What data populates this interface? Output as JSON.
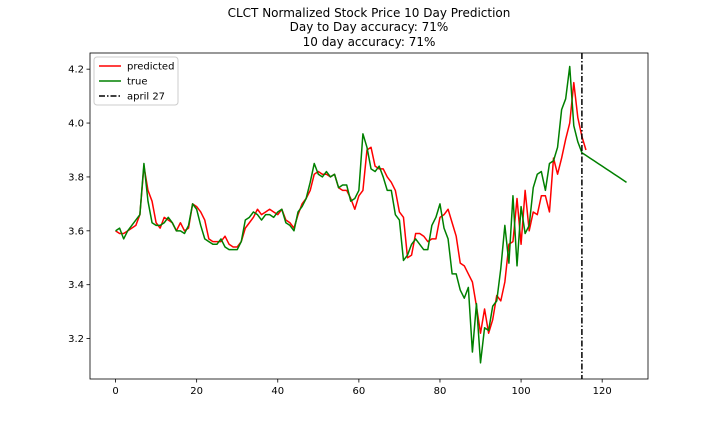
{
  "chart_data": {
    "type": "line",
    "title_lines": [
      "CLCT Normalized Stock Price 10 Day Prediction",
      "Day to Day accuracy: 71%",
      "10 day accuracy: 71%"
    ],
    "xlabel": "",
    "ylabel": "",
    "xlim": [
      -6.3,
      131.3
    ],
    "ylim": [
      3.05,
      4.26
    ],
    "xticks": [
      0,
      20,
      40,
      60,
      80,
      100,
      120
    ],
    "yticks": [
      3.2,
      3.4,
      3.6,
      3.8,
      4.0,
      4.2
    ],
    "ytick_labels": [
      "3.2",
      "3.4",
      "3.6",
      "3.8",
      "4.0",
      "4.2"
    ],
    "grid": false,
    "legend_position": "top-left",
    "series": [
      {
        "name": "predicted",
        "color": "#ff0000",
        "style": "solid",
        "x_start": 0,
        "values": [
          3.6,
          3.59,
          3.59,
          3.6,
          3.61,
          3.62,
          3.66,
          3.84,
          3.75,
          3.71,
          3.63,
          3.61,
          3.65,
          3.64,
          3.63,
          3.6,
          3.63,
          3.6,
          3.61,
          3.7,
          3.69,
          3.67,
          3.64,
          3.57,
          3.56,
          3.56,
          3.56,
          3.58,
          3.55,
          3.54,
          3.54,
          3.56,
          3.61,
          3.63,
          3.65,
          3.68,
          3.66,
          3.67,
          3.68,
          3.67,
          3.66,
          3.68,
          3.64,
          3.63,
          3.61,
          3.66,
          3.7,
          3.72,
          3.75,
          3.81,
          3.82,
          3.81,
          3.81,
          3.8,
          3.81,
          3.76,
          3.75,
          3.75,
          3.72,
          3.68,
          3.73,
          3.75,
          3.9,
          3.91,
          3.84,
          3.83,
          3.83,
          3.8,
          3.78,
          3.75,
          3.67,
          3.65,
          3.5,
          3.51,
          3.59,
          3.59,
          3.58,
          3.56,
          3.57,
          3.57,
          3.65,
          3.66,
          3.68,
          3.63,
          3.58,
          3.48,
          3.47,
          3.44,
          3.41,
          3.32,
          3.22,
          3.31,
          3.22,
          3.27,
          3.36,
          3.34,
          3.41,
          3.55,
          3.56,
          3.72,
          3.55,
          3.75,
          3.6,
          3.67,
          3.66,
          3.73,
          3.73,
          3.67,
          3.87,
          3.81,
          3.87,
          3.94,
          4.0,
          4.15,
          4.02,
          3.95,
          3.9
        ]
      },
      {
        "name": "true",
        "color": "#008000",
        "style": "solid",
        "x_start": 0,
        "values": [
          3.6,
          3.61,
          3.57,
          3.6,
          3.62,
          3.64,
          3.66,
          3.85,
          3.71,
          3.63,
          3.62,
          3.62,
          3.63,
          3.65,
          3.63,
          3.6,
          3.6,
          3.59,
          3.62,
          3.7,
          3.68,
          3.62,
          3.57,
          3.56,
          3.55,
          3.55,
          3.57,
          3.54,
          3.53,
          3.53,
          3.53,
          3.56,
          3.64,
          3.65,
          3.67,
          3.66,
          3.64,
          3.66,
          3.66,
          3.65,
          3.67,
          3.68,
          3.63,
          3.62,
          3.6,
          3.67,
          3.69,
          3.72,
          3.78,
          3.85,
          3.81,
          3.8,
          3.82,
          3.8,
          3.81,
          3.76,
          3.77,
          3.77,
          3.71,
          3.72,
          3.75,
          3.96,
          3.91,
          3.83,
          3.82,
          3.84,
          3.8,
          3.75,
          3.75,
          3.66,
          3.64,
          3.49,
          3.51,
          3.55,
          3.57,
          3.55,
          3.53,
          3.53,
          3.62,
          3.65,
          3.7,
          3.61,
          3.57,
          3.44,
          3.44,
          3.38,
          3.35,
          3.39,
          3.15,
          3.33,
          3.11,
          3.24,
          3.23,
          3.32,
          3.34,
          3.46,
          3.62,
          3.48,
          3.73,
          3.47,
          3.69,
          3.59,
          3.62,
          3.76,
          3.81,
          3.82,
          3.75,
          3.85,
          3.86,
          3.91,
          4.05,
          4.09,
          4.21,
          3.99,
          3.93,
          3.89,
          3.88,
          3.87,
          3.86,
          3.85,
          3.84,
          3.83,
          3.82,
          3.81,
          3.8,
          3.79,
          3.78
        ]
      }
    ],
    "vlines": [
      {
        "name": "april 27",
        "x": 115,
        "color": "#000000",
        "style": "dashdot"
      }
    ]
  }
}
